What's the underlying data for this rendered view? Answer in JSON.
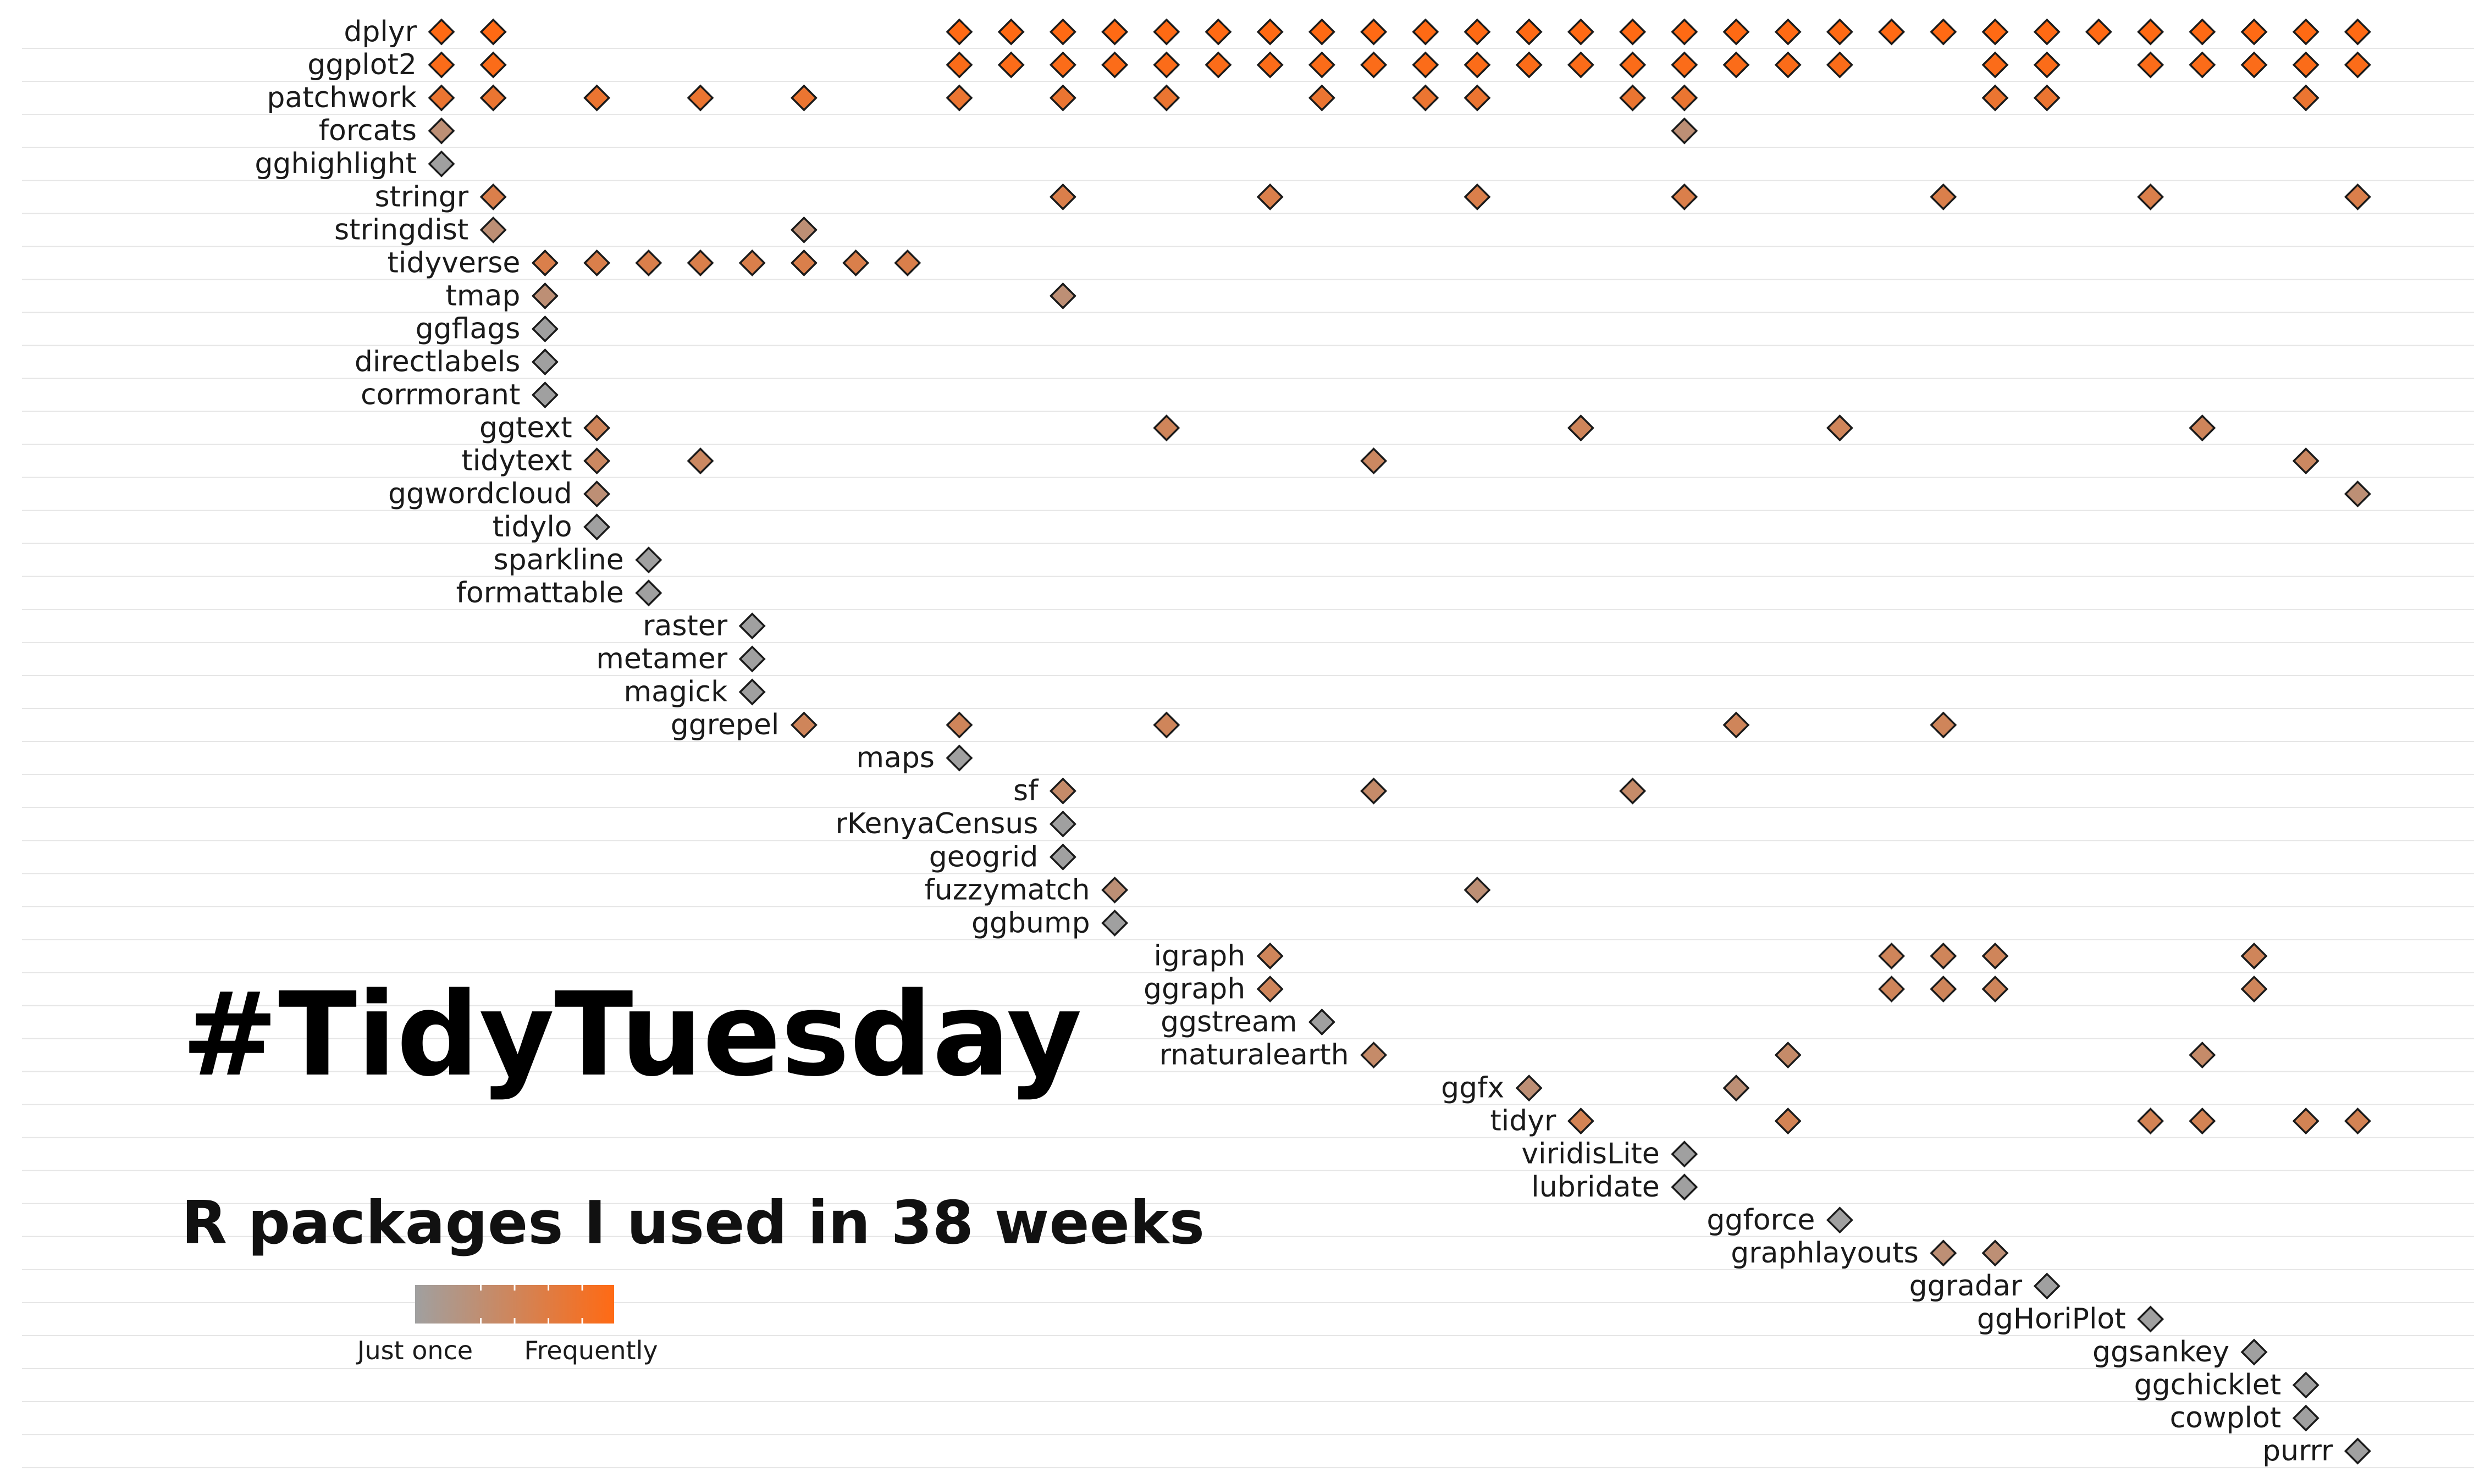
{
  "title": "#TidyTuesday",
  "subtitle": "R packages I used in 38 weeks",
  "legend": {
    "low_label": "Just once",
    "high_label": "Frequently",
    "low_color": "#a0a0a0",
    "high_color": "#ff6a14"
  },
  "chart_data": {
    "type": "scatter",
    "marker": "diamond",
    "xlim": [
      1,
      38
    ],
    "grid": true,
    "legend_position": "bottom-left",
    "packages": [
      {
        "name": "dplyr",
        "weeks": [
          1,
          2,
          11,
          12,
          13,
          14,
          15,
          16,
          17,
          18,
          19,
          20,
          21,
          22,
          23,
          24,
          25,
          26,
          27,
          28,
          29,
          30,
          31,
          32,
          33,
          34,
          35,
          36,
          37,
          38
        ]
      },
      {
        "name": "ggplot2",
        "weeks": [
          1,
          2,
          11,
          12,
          13,
          14,
          15,
          16,
          17,
          18,
          19,
          20,
          21,
          22,
          23,
          24,
          25,
          26,
          27,
          28,
          31,
          32,
          34,
          35,
          36,
          37,
          38
        ]
      },
      {
        "name": "patchwork",
        "weeks": [
          1,
          2,
          4,
          6,
          8,
          11,
          13,
          15,
          18,
          20,
          21,
          24,
          25,
          31,
          32,
          37
        ]
      },
      {
        "name": "forcats",
        "weeks": [
          1,
          25
        ]
      },
      {
        "name": "gghighlight",
        "weeks": [
          1
        ]
      },
      {
        "name": "stringr",
        "weeks": [
          2,
          13,
          17,
          21,
          25,
          30,
          34,
          38
        ]
      },
      {
        "name": "stringdist",
        "weeks": [
          2,
          8
        ]
      },
      {
        "name": "tidyverse",
        "weeks": [
          3,
          4,
          5,
          6,
          7,
          8,
          9,
          10
        ]
      },
      {
        "name": "tmap",
        "weeks": [
          3,
          13
        ]
      },
      {
        "name": "ggflags",
        "weeks": [
          3
        ]
      },
      {
        "name": "directlabels",
        "weeks": [
          3
        ]
      },
      {
        "name": "corrmorant",
        "weeks": [
          3
        ]
      },
      {
        "name": "ggtext",
        "weeks": [
          4,
          15,
          23,
          28,
          35
        ]
      },
      {
        "name": "tidytext",
        "weeks": [
          4,
          6,
          19,
          37
        ]
      },
      {
        "name": "ggwordcloud",
        "weeks": [
          4,
          38
        ]
      },
      {
        "name": "tidylo",
        "weeks": [
          4
        ]
      },
      {
        "name": "sparkline",
        "weeks": [
          5
        ]
      },
      {
        "name": "formattable",
        "weeks": [
          5
        ]
      },
      {
        "name": "raster",
        "weeks": [
          7
        ]
      },
      {
        "name": "metamer",
        "weeks": [
          7
        ]
      },
      {
        "name": "magick",
        "weeks": [
          7
        ]
      },
      {
        "name": "ggrepel",
        "weeks": [
          8,
          11,
          15,
          26,
          30
        ]
      },
      {
        "name": "maps",
        "weeks": [
          11
        ]
      },
      {
        "name": "sf",
        "weeks": [
          13,
          19,
          24
        ]
      },
      {
        "name": "rKenyaCensus",
        "weeks": [
          13
        ]
      },
      {
        "name": "geogrid",
        "weeks": [
          13
        ]
      },
      {
        "name": "fuzzymatch",
        "weeks": [
          14,
          21
        ]
      },
      {
        "name": "ggbump",
        "weeks": [
          14
        ]
      },
      {
        "name": "igraph",
        "weeks": [
          17,
          29,
          30,
          31,
          36
        ]
      },
      {
        "name": "ggraph",
        "weeks": [
          17,
          29,
          30,
          31,
          36
        ]
      },
      {
        "name": "ggstream",
        "weeks": [
          18
        ]
      },
      {
        "name": "rnaturalearth",
        "weeks": [
          19,
          27,
          35
        ]
      },
      {
        "name": "ggfx",
        "weeks": [
          22,
          26
        ]
      },
      {
        "name": "tidyr",
        "weeks": [
          23,
          27,
          34,
          35,
          37,
          38
        ]
      },
      {
        "name": "viridisLite",
        "weeks": [
          25
        ]
      },
      {
        "name": "lubridate",
        "weeks": [
          25
        ]
      },
      {
        "name": "ggforce",
        "weeks": [
          28
        ]
      },
      {
        "name": "graphlayouts",
        "weeks": [
          30,
          31
        ]
      },
      {
        "name": "ggradar",
        "weeks": [
          32
        ]
      },
      {
        "name": "ggHoriPlot",
        "weeks": [
          34
        ]
      },
      {
        "name": "ggsankey",
        "weeks": [
          36
        ]
      },
      {
        "name": "ggchicklet",
        "weeks": [
          37
        ]
      },
      {
        "name": "cowplot",
        "weeks": [
          37
        ]
      },
      {
        "name": "purrr",
        "weeks": [
          38
        ]
      }
    ]
  }
}
